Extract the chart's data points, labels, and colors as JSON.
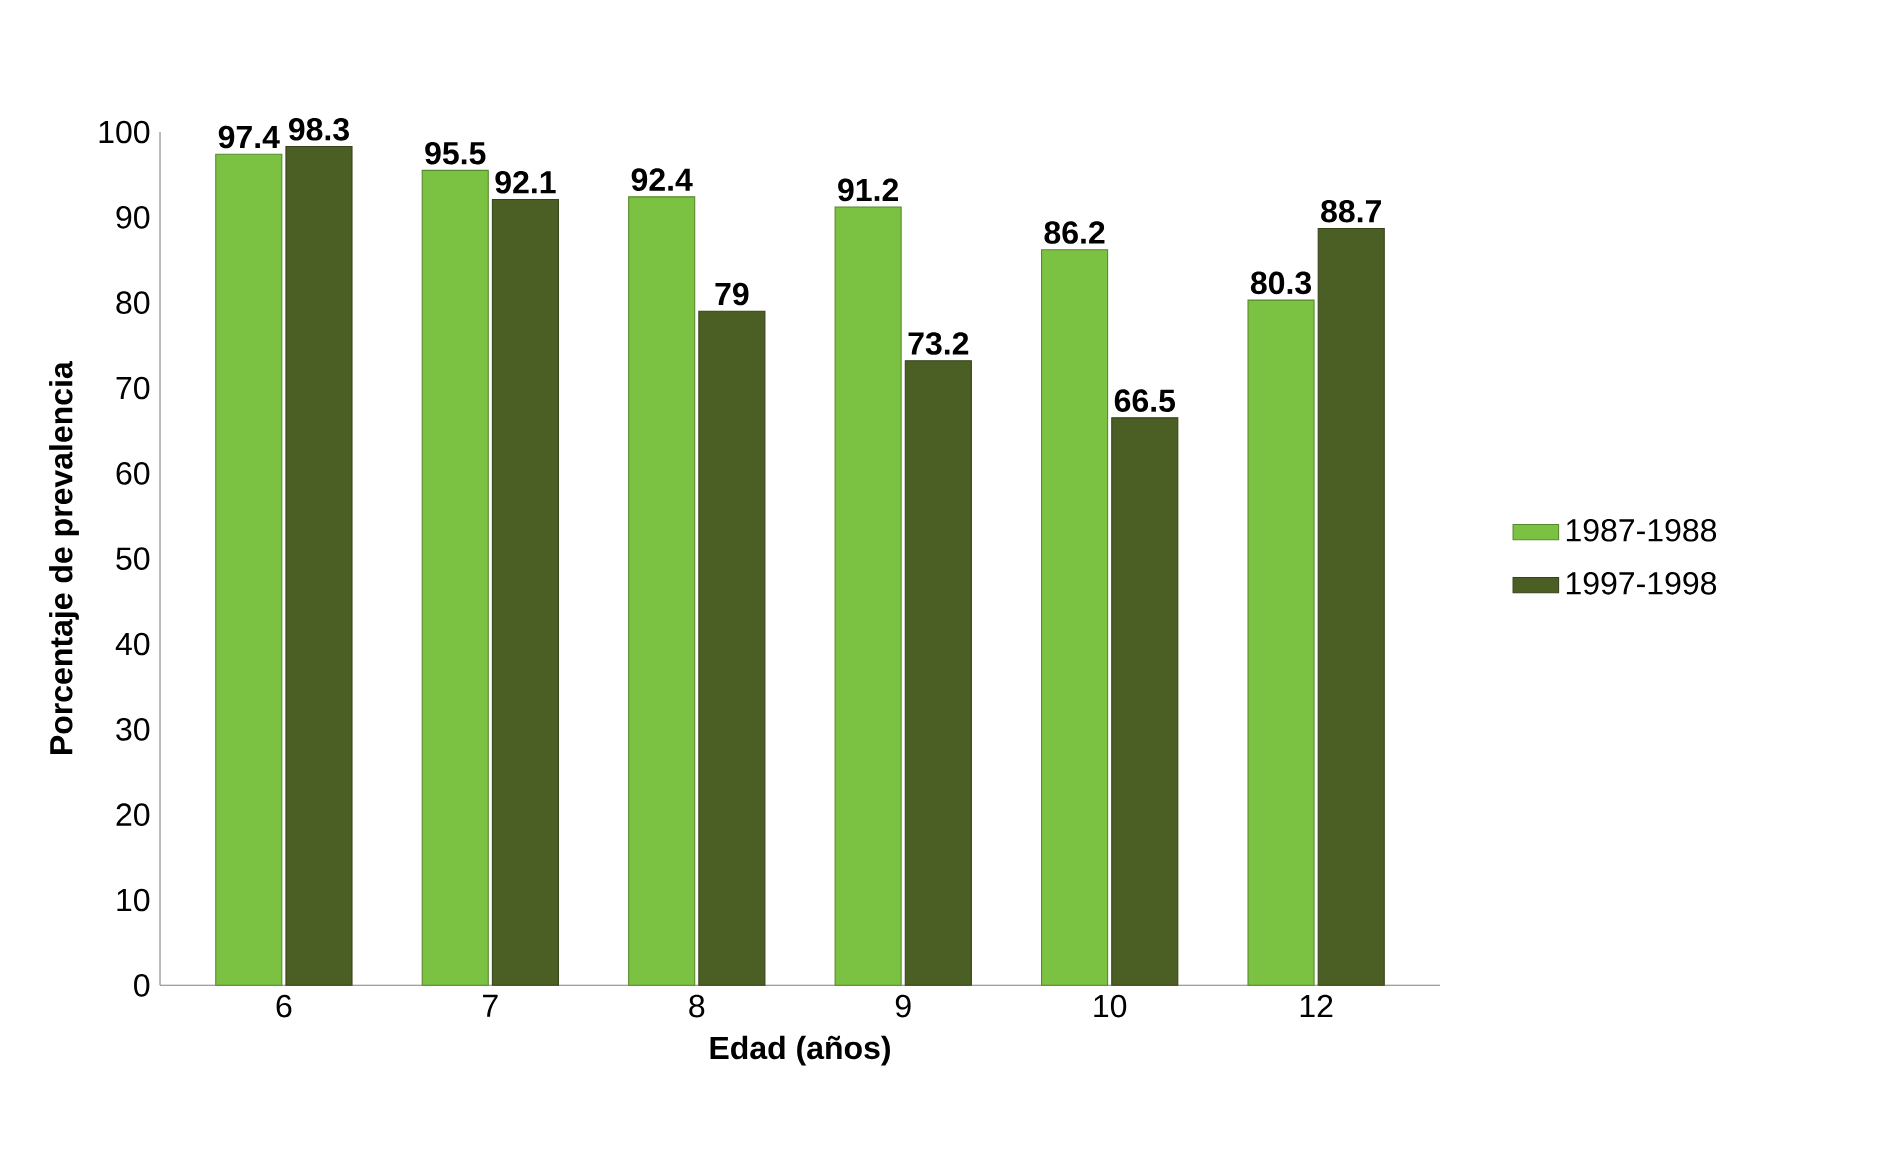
{
  "chart_data": {
    "type": "bar",
    "xlabel": "Edad (años)",
    "ylabel": "Porcentaje de prevalencia",
    "categories": [
      "6",
      "7",
      "8",
      "9",
      "10",
      "12"
    ],
    "series": [
      {
        "name": "1987-1988",
        "color": "#7cc242",
        "values": [
          97.4,
          95.5,
          92.4,
          91.2,
          86.2,
          80.3
        ]
      },
      {
        "name": "1997-1998",
        "color": "#4b5f24",
        "values": [
          98.3,
          92.1,
          79,
          73.2,
          66.5,
          88.7
        ]
      }
    ],
    "ylim": [
      0,
      100
    ],
    "yticks": [
      0,
      10,
      20,
      30,
      40,
      50,
      60,
      70,
      80,
      90,
      100
    ],
    "data_labels": true,
    "legend": "right",
    "grid": false
  }
}
